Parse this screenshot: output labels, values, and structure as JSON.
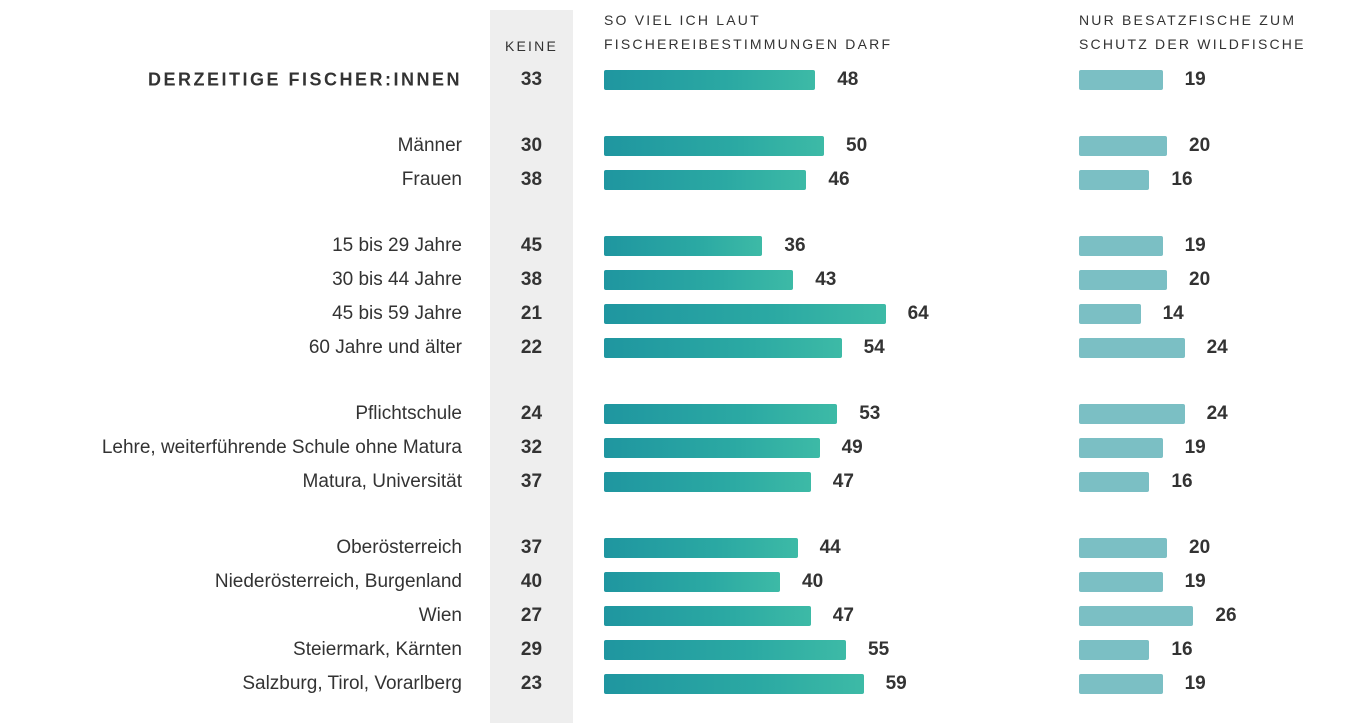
{
  "chart_data": {
    "type": "bar",
    "categories": [
      "DERZEITIGE FISCHER:INNEN",
      "Männer",
      "Frauen",
      "15 bis 29 Jahre",
      "30 bis 44 Jahre",
      "45 bis 59 Jahre",
      "60 Jahre und älter",
      "Pflichtschule",
      "Lehre, weiterführende Schule ohne Matura",
      "Matura, Universität",
      "Oberösterreich",
      "Niederösterreich, Burgenland",
      "Wien",
      "Steiermark, Kärnten",
      "Salzburg, Tirol, Vorarlberg"
    ],
    "series": [
      {
        "name": "KEINE",
        "color": "#eeeeee",
        "values": [
          33,
          30,
          38,
          45,
          38,
          21,
          22,
          24,
          32,
          37,
          37,
          40,
          27,
          29,
          23
        ]
      },
      {
        "name": "SO VIEL ICH LAUT FISCHEREIBESTIMMUNGEN DARF",
        "color": "#2ba9a3",
        "values": [
          48,
          50,
          46,
          36,
          43,
          64,
          54,
          53,
          49,
          47,
          44,
          40,
          47,
          55,
          59
        ]
      },
      {
        "name": "NUR BESATZFISCHE ZUM SCHUTZ DER WILDFISCHE",
        "color": "#7bbfc4",
        "values": [
          19,
          20,
          16,
          19,
          20,
          14,
          24,
          24,
          19,
          16,
          20,
          19,
          26,
          16,
          19
        ]
      }
    ]
  }
}
